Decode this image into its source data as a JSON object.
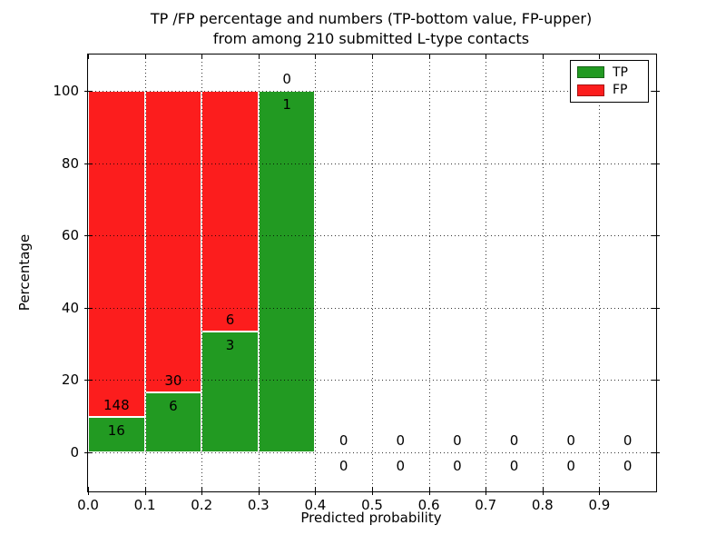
{
  "figure": {
    "title_line1": "TP /FP percentage and numbers (TP-bottom value, FP-upper)",
    "title_line2": "from among 210 submitted L-type contacts"
  },
  "chart_data": {
    "type": "bar",
    "stacked": true,
    "title": "TP /FP percentage and numbers (TP-bottom value, FP-upper) from among 210 submitted L-type contacts",
    "submitted_total": 210,
    "xlabel": "Predicted probability",
    "ylabel": "Percentage",
    "x_tick_labels": [
      "0.0",
      "0.1",
      "0.2",
      "0.3",
      "0.4",
      "0.5",
      "0.6",
      "0.7",
      "0.8",
      "0.9"
    ],
    "y_tick_values": [
      0,
      20,
      40,
      60,
      80,
      100
    ],
    "xlim": [
      0.0,
      1.0
    ],
    "ylim": [
      -11,
      110
    ],
    "grid": true,
    "legend_position": "upper right",
    "series": [
      {
        "name": "TP",
        "color": "#229a22"
      },
      {
        "name": "FP",
        "color": "#fc1d1d"
      }
    ],
    "bins": [
      {
        "x_range": [
          0.0,
          0.1
        ],
        "tp": 16,
        "fp": 148,
        "tp_pct": 9.76,
        "fp_pct": 90.24
      },
      {
        "x_range": [
          0.1,
          0.2
        ],
        "tp": 6,
        "fp": 30,
        "tp_pct": 16.67,
        "fp_pct": 83.33
      },
      {
        "x_range": [
          0.2,
          0.3
        ],
        "tp": 3,
        "fp": 6,
        "tp_pct": 33.33,
        "fp_pct": 66.67
      },
      {
        "x_range": [
          0.3,
          0.4
        ],
        "tp": 1,
        "fp": 0,
        "tp_pct": 100,
        "fp_pct": 0
      },
      {
        "x_range": [
          0.4,
          0.5
        ],
        "tp": 0,
        "fp": 0,
        "tp_pct": 0,
        "fp_pct": 0
      },
      {
        "x_range": [
          0.5,
          0.6
        ],
        "tp": 0,
        "fp": 0,
        "tp_pct": 0,
        "fp_pct": 0
      },
      {
        "x_range": [
          0.6,
          0.7
        ],
        "tp": 0,
        "fp": 0,
        "tp_pct": 0,
        "fp_pct": 0
      },
      {
        "x_range": [
          0.7,
          0.8
        ],
        "tp": 0,
        "fp": 0,
        "tp_pct": 0,
        "fp_pct": 0
      },
      {
        "x_range": [
          0.8,
          0.9
        ],
        "tp": 0,
        "fp": 0,
        "tp_pct": 0,
        "fp_pct": 0
      },
      {
        "x_range": [
          0.9,
          1.0
        ],
        "tp": 0,
        "fp": 0,
        "tp_pct": 0,
        "fp_pct": 0
      }
    ]
  }
}
